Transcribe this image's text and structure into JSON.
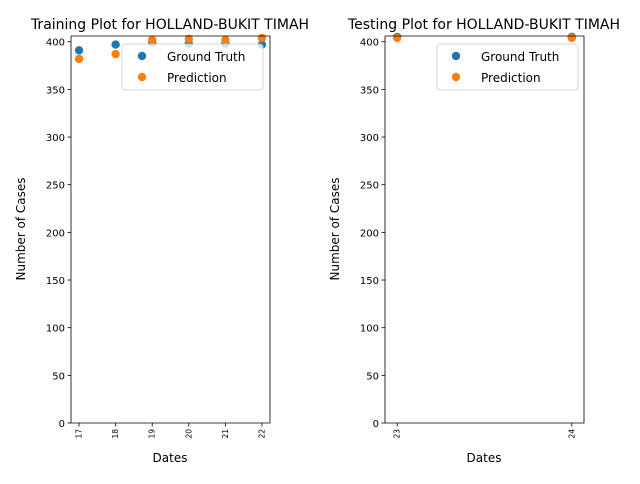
{
  "colors": {
    "ground_truth": "#1f77b4",
    "prediction": "#ff7f0e"
  },
  "chart_data": [
    {
      "type": "scatter",
      "title": "Training Plot for HOLLAND-BUKIT TIMAH",
      "xlabel": "Dates",
      "ylabel": "Number of Cases",
      "x": [
        17,
        18,
        19,
        20,
        21,
        22
      ],
      "xticks": [
        "17",
        "18",
        "19",
        "20",
        "21",
        "22"
      ],
      "yticks": [
        "0",
        "50",
        "100",
        "150",
        "200",
        "250",
        "300",
        "350",
        "400"
      ],
      "xlim": [
        16.78,
        22.22
      ],
      "ylim": [
        0,
        406
      ],
      "grid": false,
      "legend_position": "upper right",
      "series": [
        {
          "name": "Ground Truth",
          "values": [
            391,
            397,
            399,
            398,
            398,
            397
          ]
        },
        {
          "name": "Prediction",
          "values": [
            382,
            387,
            402,
            403,
            402,
            404
          ]
        }
      ]
    },
    {
      "type": "scatter",
      "title": "Testing Plot for HOLLAND-BUKIT TIMAH",
      "xlabel": "Dates",
      "ylabel": "Number of Cases",
      "x": [
        23,
        24
      ],
      "xticks": [
        "23",
        "24"
      ],
      "yticks": [
        "0",
        "50",
        "100",
        "150",
        "200",
        "250",
        "300",
        "350",
        "400"
      ],
      "xlim": [
        22.93,
        24.07
      ],
      "ylim": [
        0,
        406
      ],
      "grid": false,
      "legend_position": "upper right",
      "series": [
        {
          "name": "Ground Truth",
          "values": [
            405,
            405
          ]
        },
        {
          "name": "Prediction",
          "values": [
            404,
            404
          ]
        }
      ]
    }
  ]
}
